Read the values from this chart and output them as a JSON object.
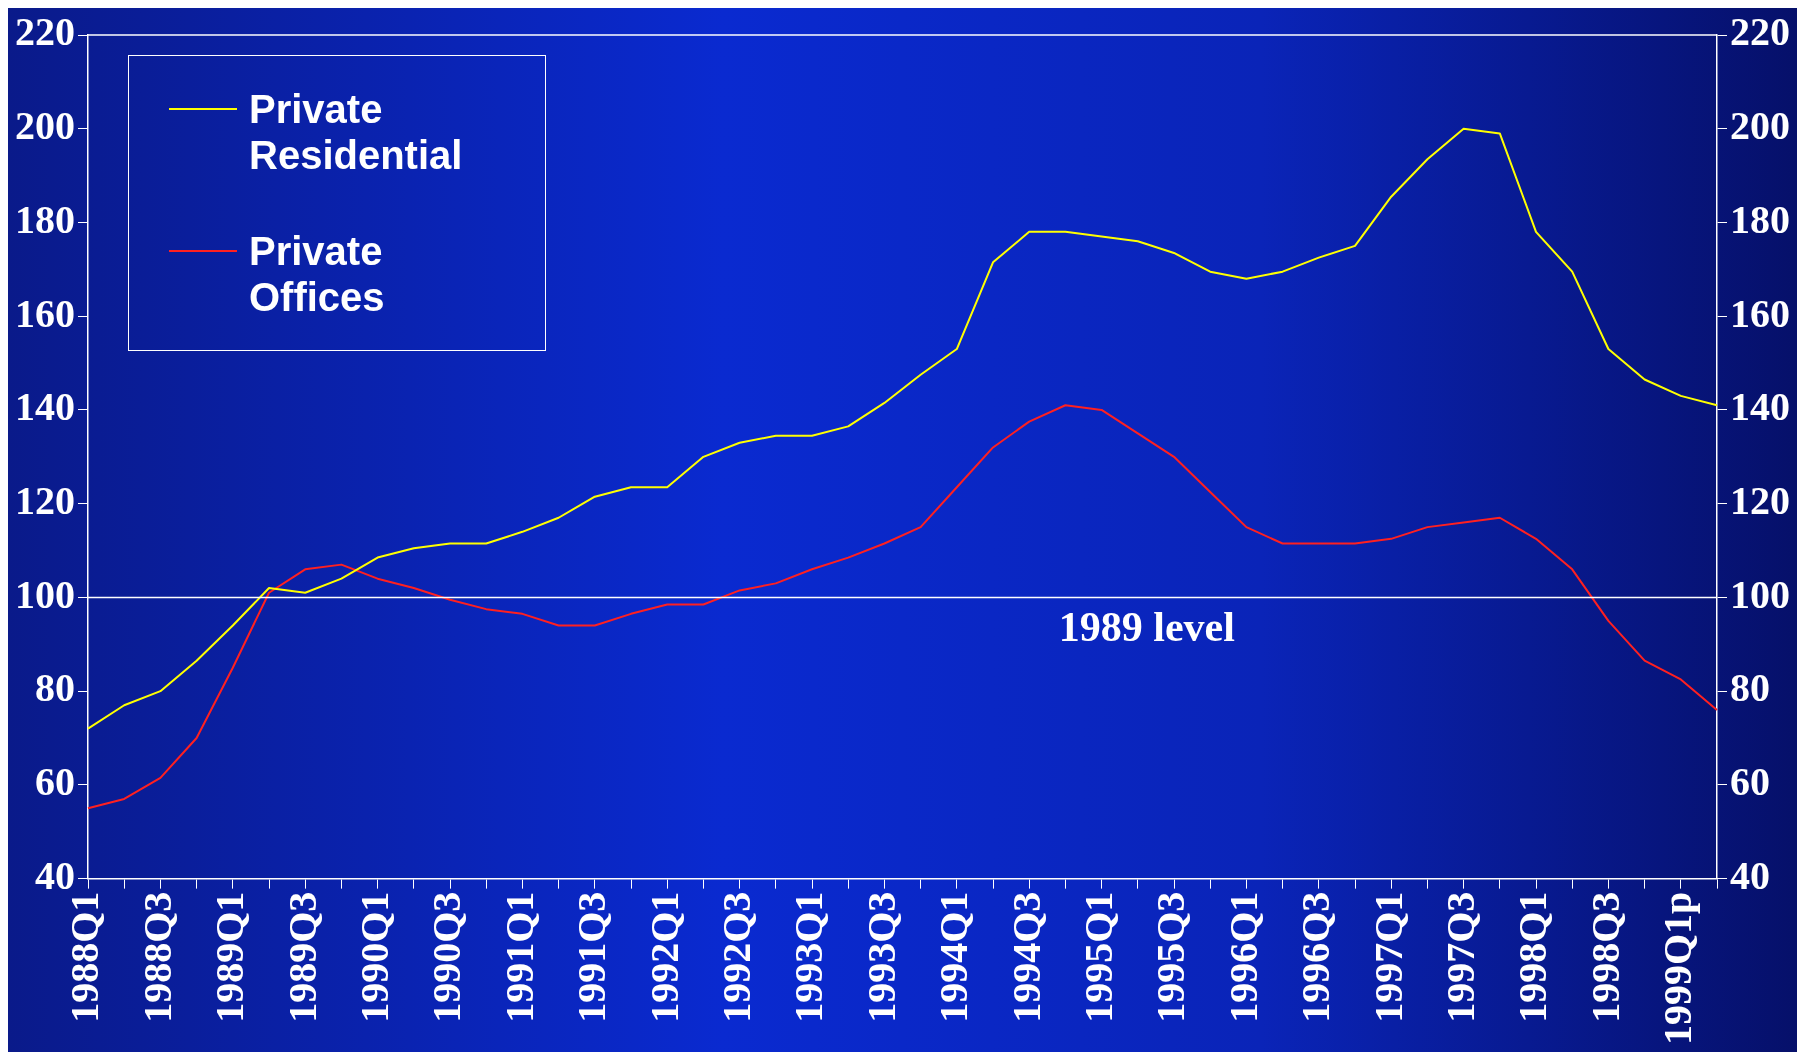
{
  "chart_data": {
    "type": "line",
    "categories": [
      "1988Q1",
      null,
      "1988Q3",
      null,
      "1989Q1",
      null,
      "1989Q3",
      null,
      "1990Q1",
      null,
      "1990Q3",
      null,
      "1991Q1",
      null,
      "1991Q3",
      null,
      "1992Q1",
      null,
      "1992Q3",
      null,
      "1993Q1",
      null,
      "1993Q3",
      null,
      "1994Q1",
      null,
      "1994Q3",
      null,
      "1995Q1",
      null,
      "1995Q3",
      null,
      "1996Q1",
      null,
      "1996Q3",
      null,
      "1997Q1",
      null,
      "1997Q3",
      null,
      "1998Q1",
      null,
      "1998Q3",
      null,
      "1999Q1p",
      null
    ],
    "series": [
      {
        "name": "Private Residential",
        "color": "#ffff00",
        "values": [
          72,
          77,
          80,
          86.5,
          94,
          102,
          101,
          104,
          108.5,
          110.5,
          111.5,
          111.5,
          114,
          117,
          121.5,
          123.5,
          123.5,
          130,
          133,
          134.5,
          134.5,
          136.5,
          141.5,
          147.5,
          153,
          171.5,
          178,
          178,
          177,
          176,
          173.5,
          169.5,
          168,
          169.5,
          172.5,
          175,
          185.5,
          193.5,
          200,
          199,
          178,
          169.5,
          153,
          146.5,
          143,
          141
        ]
      },
      {
        "name": "Private Offices",
        "color": "#ff2020",
        "values": [
          55,
          57,
          61.5,
          70,
          85,
          101,
          106,
          107,
          104,
          102,
          99.5,
          97.5,
          96.5,
          94,
          94,
          96.5,
          98.5,
          98.5,
          101.5,
          103,
          106,
          108.5,
          111.5,
          115,
          123.5,
          132,
          137.5,
          141,
          140,
          135,
          130,
          122.5,
          115,
          111.5,
          111.5,
          111.5,
          112.5,
          115,
          116,
          117,
          112.5,
          106,
          95,
          86.5,
          82.5,
          76
        ]
      }
    ],
    "ylim": [
      40,
      220
    ],
    "yticks": [
      40,
      60,
      80,
      100,
      120,
      140,
      160,
      180,
      200,
      220
    ],
    "y2lim": [
      40,
      220
    ],
    "y2ticks": [
      40,
      60,
      80,
      100,
      120,
      140,
      160,
      180,
      200,
      220
    ],
    "ref_lines": [
      {
        "axis": "y",
        "value": 100,
        "label": "1989 level",
        "color": "#ffffff"
      }
    ],
    "legend": "top left",
    "grid": false,
    "marker": "none",
    "line_style": "solid"
  }
}
